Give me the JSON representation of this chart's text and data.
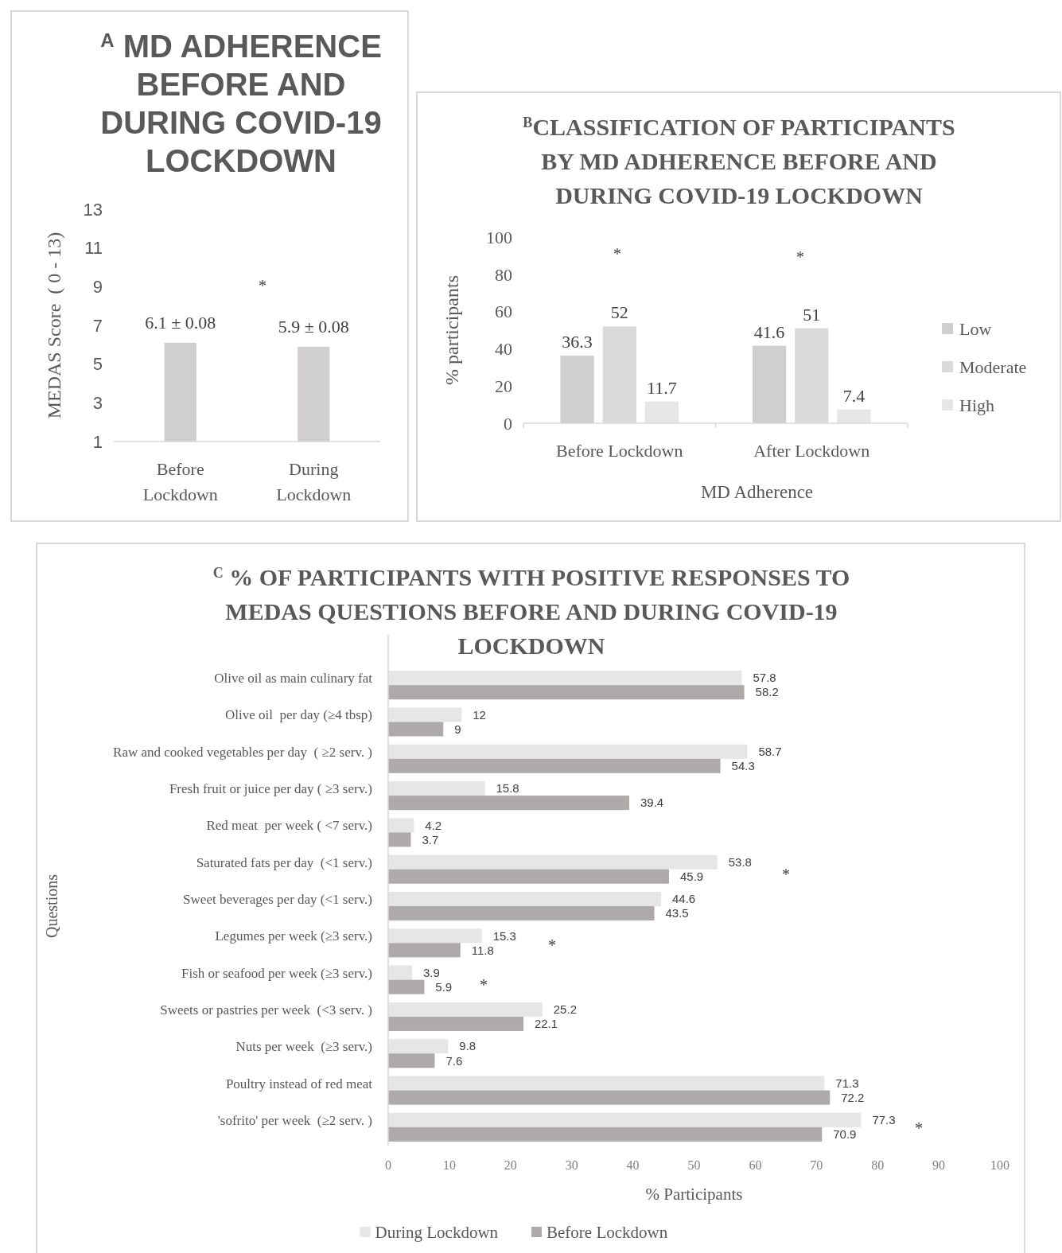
{
  "chart_data": [
    {
      "type": "bar",
      "title": "$^{A}$ MD ADHERENCE BEFORE AND DURING COVID-19 LOCKDOWN",
      "categories": [
        "Before Lockdown",
        "During Lockdown"
      ],
      "values": [
        6.1,
        5.9
      ],
      "color": "#d0cece",
      "value_labels": [
        "6.1 ± 0.08",
        "5.9 ± 0.08"
      ],
      "ylim": [
        1,
        13
      ],
      "yticks": [
        1,
        3,
        5,
        7,
        9,
        11,
        13
      ],
      "ylabel": "MEDAS Score  ( 0 - 13)",
      "annotations": [
        "*"
      ]
    },
    {
      "type": "bar",
      "title": "$^{B}$CLASSIFICATION OF PARTICIPANTS BY MD ADHERENCE BEFORE AND DURING COVID-19 LOCKDOWN",
      "categories": [
        "Before Lockdown",
        "After Lockdown"
      ],
      "series": [
        {
          "name": "Low",
          "color": "#d0cece",
          "values": [
            36.3,
            41.6
          ]
        },
        {
          "name": "Moderate",
          "color": "#dadada",
          "values": [
            52,
            51
          ]
        },
        {
          "name": "High",
          "color": "#e6e6e6",
          "values": [
            11.7,
            7.4
          ]
        }
      ],
      "ylim": [
        0,
        100
      ],
      "yticks": [
        0,
        20,
        40,
        60,
        80,
        100
      ],
      "xlabel": "MD Adherence",
      "ylabel": "% participants",
      "data_labels": true,
      "legend": "right",
      "annotations": [
        "*",
        "*"
      ]
    },
    {
      "type": "bar",
      "orientation": "horizontal",
      "title": "$^{C}$ % OF PARTICIPANTS WITH POSITIVE RESPONSES TO MEDAS QUESTIONS BEFORE AND DURING COVID-19 LOCKDOWN",
      "categories": [
        "Olive oil as main culinary fat",
        "Olive oil  per day (≥4 tbsp)",
        "Raw and cooked vegetables per day  ( ≥2 serv. )",
        "Fresh fruit or juice per day ( ≥3 serv.)",
        "Red meat  per week ( <7 serv.)",
        "Saturated fats per day  (<1 serv.)",
        "Sweet beverages per day (<1 serv.)",
        "Legumes per week (≥3 serv.)",
        "Fish or seafood per week (≥3 serv.)",
        "Sweets or pastries per week  (<3 serv. )",
        "Nuts per week  (≥3 serv.)",
        "Poultry instead of red meat",
        "'sofrito' per week  (≥2 serv. )"
      ],
      "series": [
        {
          "name": "During Lockdown",
          "color": "#e6e6e6",
          "values": [
            57.8,
            12,
            58.7,
            15.8,
            4.2,
            53.8,
            44.6,
            15.3,
            3.9,
            25.2,
            9.8,
            71.3,
            77.3
          ]
        },
        {
          "name": "Before Lockdown",
          "color": "#aeaaaa",
          "values": [
            58.2,
            9,
            54.3,
            39.4,
            3.7,
            45.9,
            43.5,
            11.8,
            5.9,
            22.1,
            7.6,
            72.2,
            70.9
          ]
        }
      ],
      "xlim": [
        0,
        100
      ],
      "xticks": [
        0,
        10,
        20,
        30,
        40,
        50,
        60,
        70,
        80,
        90,
        100
      ],
      "xlabel": "% Participants",
      "ylabel": "Questions",
      "data_labels": true,
      "legend": "bottom",
      "annotations": [
        "*",
        "*",
        "*",
        "*"
      ]
    }
  ]
}
